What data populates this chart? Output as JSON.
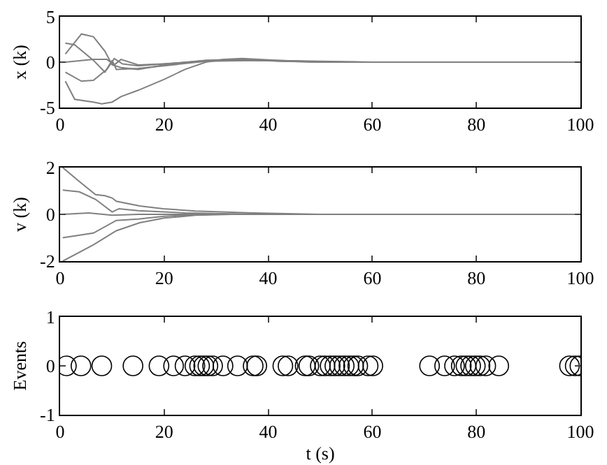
{
  "chart_data": [
    {
      "type": "line",
      "ylabel": "x (k)",
      "xlim": [
        0,
        100
      ],
      "ylim": [
        -5,
        5
      ],
      "xticks": [
        0,
        20,
        40,
        60,
        80,
        100
      ],
      "yticks": [
        -5,
        0,
        5
      ],
      "grid": false,
      "marker": "none",
      "line_style": "solid",
      "series": [
        {
          "color": "#808080",
          "x": [
            1,
            4.1,
            6.4,
            8.6,
            10,
            11.7,
            15,
            20,
            28,
            33,
            40,
            50,
            60,
            100
          ],
          "values": [
            0.9,
            3.1,
            2.8,
            1.2,
            -0.3,
            -0.6,
            -0.8,
            -0.3,
            0.2,
            0.3,
            0.2,
            0.1,
            0,
            0
          ]
        },
        {
          "color": "#808080",
          "x": [
            1,
            2.8,
            6.4,
            8.6,
            10,
            10.8,
            15,
            20,
            28,
            35,
            43,
            50,
            60,
            100
          ],
          "values": [
            2.1,
            1.9,
            0.2,
            -1.1,
            0.2,
            -0.8,
            -0.7,
            -0.4,
            0.1,
            0.3,
            0.1,
            0,
            0,
            0
          ]
        },
        {
          "color": "#808080",
          "x": [
            1,
            4.1,
            6.4,
            9,
            10.4,
            12,
            15,
            20,
            28,
            36,
            45,
            55,
            100
          ],
          "values": [
            -1.1,
            -2.1,
            -2,
            -0.8,
            0.4,
            -0.2,
            -0.4,
            -0.2,
            0.2,
            0.2,
            0.1,
            0,
            0
          ]
        },
        {
          "color": "#808080",
          "x": [
            1,
            2.8,
            6.4,
            8,
            10,
            11.7,
            15,
            20,
            24,
            28,
            31.5,
            35,
            42,
            51,
            60,
            100
          ],
          "values": [
            -2.1,
            -4.1,
            -4.4,
            -4.6,
            -4.4,
            -3.8,
            -3.1,
            -1.9,
            -0.8,
            0,
            0.3,
            0.4,
            0.2,
            0,
            0,
            0
          ]
        },
        {
          "color": "#808080",
          "x": [
            1,
            6.4,
            9,
            10.4,
            11.7,
            15,
            20,
            28,
            38,
            50,
            100
          ],
          "values": [
            0,
            0.3,
            0.3,
            -0.3,
            0.3,
            -0.3,
            -0.2,
            0.1,
            0.2,
            0,
            0
          ]
        }
      ]
    },
    {
      "type": "line",
      "ylabel": "v (k)",
      "xlim": [
        0,
        100
      ],
      "ylim": [
        -2,
        2
      ],
      "xticks": [
        0,
        20,
        40,
        60,
        80,
        100
      ],
      "yticks": [
        -2,
        0,
        2
      ],
      "grid": false,
      "marker": "none",
      "line_style": "solid",
      "series": [
        {
          "color": "#808080",
          "x": [
            0.5,
            3.7,
            6.8,
            8.6,
            10,
            10.8,
            15.3,
            19.8,
            26,
            37,
            50,
            100
          ],
          "values": [
            2,
            1.4,
            0.84,
            0.8,
            0.7,
            0.56,
            0.36,
            0.24,
            0.14,
            0.06,
            0,
            0
          ]
        },
        {
          "color": "#808080",
          "x": [
            0.5,
            3.7,
            6.8,
            10,
            11.3,
            15,
            24,
            33,
            45,
            100
          ],
          "values": [
            1.04,
            0.96,
            0.64,
            0.1,
            0.24,
            0.16,
            0.06,
            0.02,
            0,
            0
          ]
        },
        {
          "color": "#808080",
          "x": [
            0.5,
            5.5,
            10,
            15,
            30,
            100
          ],
          "values": [
            0,
            0.06,
            -0.04,
            0,
            0,
            0
          ]
        },
        {
          "color": "#808080",
          "x": [
            0.5,
            6.4,
            10.8,
            15,
            20,
            29,
            100
          ],
          "values": [
            -1,
            -0.8,
            -0.26,
            -0.2,
            -0.08,
            0,
            0
          ]
        },
        {
          "color": "#808080",
          "x": [
            0.5,
            6.4,
            10.8,
            15.3,
            20,
            26,
            33,
            100
          ],
          "values": [
            -2,
            -1.3,
            -0.7,
            -0.36,
            -0.16,
            -0.04,
            0,
            0
          ]
        }
      ]
    },
    {
      "type": "scatter",
      "xlabel": "t (s)",
      "ylabel": "Events",
      "xlim": [
        0,
        100
      ],
      "ylim": [
        -1,
        1
      ],
      "xticks": [
        0,
        20,
        40,
        60,
        80,
        100
      ],
      "yticks": [
        -1,
        0,
        1
      ],
      "grid": false,
      "marker": "circle",
      "series": [
        {
          "color": "#000000",
          "x": [
            1.2,
            4,
            8,
            14,
            19,
            21.8,
            24,
            25.9,
            26.8,
            27.6,
            28.4,
            29.3,
            31.3,
            34.1,
            37.1,
            37.8,
            42.8,
            43.8,
            47.1,
            47.8,
            50,
            50.9,
            51.9,
            52.8,
            53.7,
            54.6,
            55.5,
            56.4,
            57.2,
            59.2,
            60.1,
            71,
            73.9,
            75.8,
            77.1,
            78,
            78.9,
            79.8,
            80.7,
            81.8,
            84.3,
            97.9,
            99,
            99.9
          ],
          "values": [
            0,
            0,
            0,
            0,
            0,
            0,
            0,
            0,
            0,
            0,
            0,
            0,
            0,
            0,
            0,
            0,
            0,
            0,
            0,
            0,
            0,
            0,
            0,
            0,
            0,
            0,
            0,
            0,
            0,
            0,
            0,
            0,
            0,
            0,
            0,
            0,
            0,
            0,
            0,
            0,
            0,
            0,
            0,
            0
          ]
        }
      ]
    }
  ]
}
